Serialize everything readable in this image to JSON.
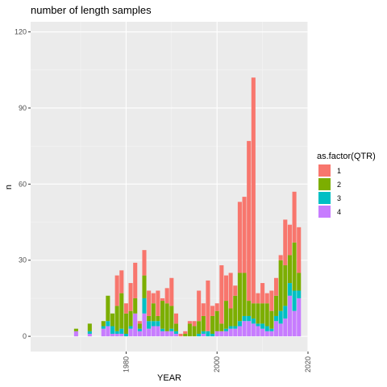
{
  "chart_data": {
    "type": "bar",
    "stacked": true,
    "title": "number of length samples",
    "xlabel": "YEAR",
    "ylabel": "n",
    "xlim": [
      1959,
      2020
    ],
    "ylim": [
      -6,
      124
    ],
    "x_ticks": [
      1980,
      2000,
      2020
    ],
    "y_ticks": [
      0,
      30,
      60,
      90,
      120
    ],
    "grid": true,
    "legend": {
      "title": "as.factor(QTR)",
      "placement": "right"
    },
    "x": [
      1969,
      1970,
      1971,
      1972,
      1973,
      1974,
      1975,
      1976,
      1977,
      1978,
      1979,
      1980,
      1981,
      1982,
      1983,
      1984,
      1985,
      1986,
      1987,
      1988,
      1989,
      1990,
      1991,
      1992,
      1993,
      1994,
      1995,
      1996,
      1997,
      1998,
      1999,
      2000,
      2001,
      2002,
      2003,
      2004,
      2005,
      2006,
      2007,
      2008,
      2009,
      2010,
      2011,
      2012,
      2013,
      2014,
      2015,
      2016,
      2017,
      2018
    ],
    "series": [
      {
        "name": "1",
        "color": "#F8766D",
        "values": [
          0,
          0,
          0,
          0,
          0,
          0,
          0,
          0,
          0,
          12,
          9,
          4,
          11,
          14,
          1,
          10,
          10,
          4,
          10,
          1,
          6,
          11,
          4,
          1,
          1,
          1,
          2,
          12,
          5,
          20,
          4,
          3,
          23,
          10,
          14,
          4,
          28,
          30,
          63,
          89,
          4,
          8,
          4,
          8,
          7,
          2,
          18,
          12,
          20,
          18
        ]
      },
      {
        "name": "2",
        "color": "#7CAE00",
        "values": [
          1,
          0,
          0,
          3,
          0,
          0,
          2,
          10,
          5,
          10,
          14,
          8,
          6,
          6,
          2,
          9,
          2,
          7,
          2,
          11,
          11,
          9,
          3,
          0,
          1,
          5,
          4,
          5,
          6,
          0,
          7,
          8,
          3,
          11,
          7,
          12,
          19,
          17,
          6,
          6,
          8,
          8,
          9,
          7,
          8,
          20,
          16,
          11,
          19,
          7
        ]
      },
      {
        "name": "3",
        "color": "#00BFC4",
        "values": [
          0,
          0,
          0,
          1,
          0,
          0,
          1,
          2,
          3,
          1,
          2,
          1,
          1,
          0,
          1,
          6,
          3,
          2,
          2,
          1,
          0,
          1,
          1,
          0,
          0,
          0,
          0,
          1,
          1,
          2,
          1,
          0,
          0,
          1,
          1,
          1,
          2,
          2,
          2,
          2,
          1,
          2,
          2,
          1,
          2,
          5,
          5,
          5,
          8,
          3
        ]
      },
      {
        "name": "4",
        "color": "#C77CFF",
        "values": [
          2,
          0,
          0,
          1,
          0,
          0,
          3,
          4,
          1,
          1,
          1,
          0,
          3,
          9,
          2,
          9,
          3,
          4,
          4,
          2,
          2,
          2,
          1,
          0,
          0,
          0,
          0,
          0,
          1,
          0,
          0,
          2,
          2,
          2,
          3,
          3,
          4,
          6,
          6,
          5,
          4,
          3,
          2,
          2,
          6,
          5,
          7,
          16,
          10,
          15
        ]
      }
    ]
  }
}
